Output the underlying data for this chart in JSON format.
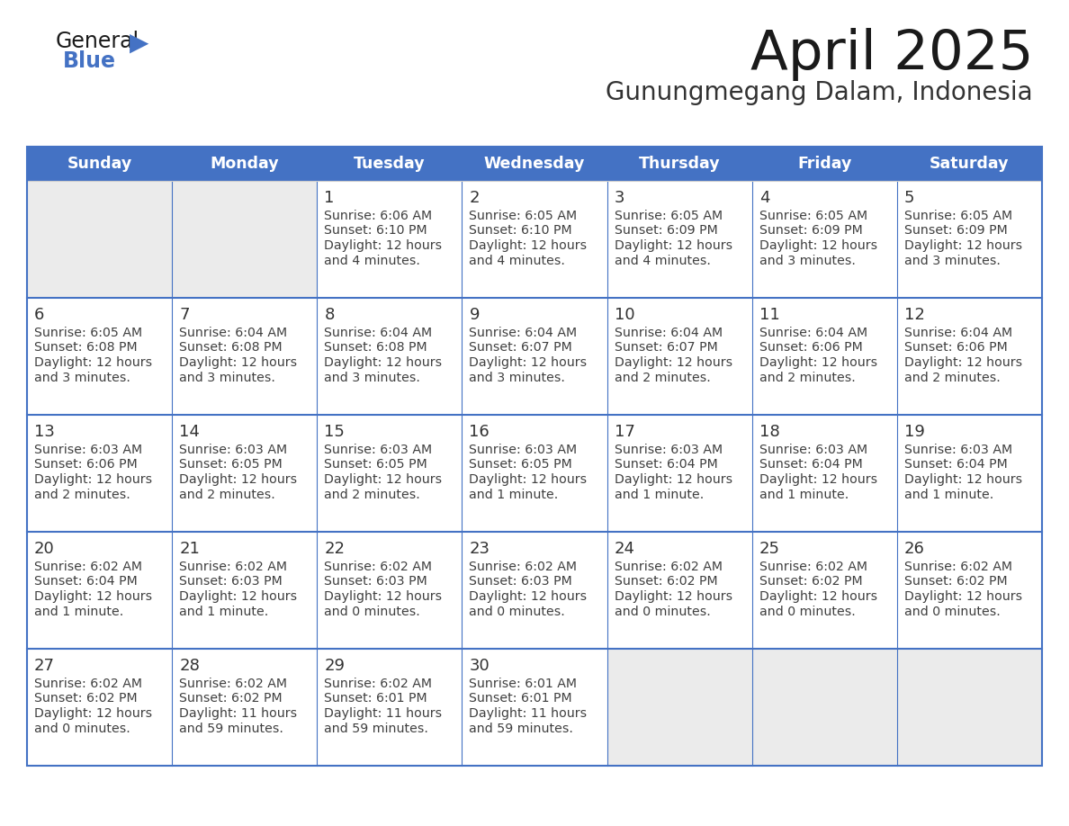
{
  "title": "April 2025",
  "subtitle": "Gunungmegang Dalam, Indonesia",
  "days_of_week": [
    "Sunday",
    "Monday",
    "Tuesday",
    "Wednesday",
    "Thursday",
    "Friday",
    "Saturday"
  ],
  "header_bg": "#4472C4",
  "header_text": "#FFFFFF",
  "empty_cell_bg": "#EBEBEB",
  "filled_cell_bg": "#FFFFFF",
  "grid_color": "#4472C4",
  "row_sep_color": "#4472C4",
  "text_color": "#404040",
  "day_num_color": "#333333",
  "title_color": "#1a1a1a",
  "subtitle_color": "#333333",
  "calendar": [
    [
      {
        "day": null
      },
      {
        "day": null
      },
      {
        "day": 1,
        "sunrise": "6:06 AM",
        "sunset": "6:10 PM",
        "daylight": "12 hours",
        "daylight2": "and 4 minutes."
      },
      {
        "day": 2,
        "sunrise": "6:05 AM",
        "sunset": "6:10 PM",
        "daylight": "12 hours",
        "daylight2": "and 4 minutes."
      },
      {
        "day": 3,
        "sunrise": "6:05 AM",
        "sunset": "6:09 PM",
        "daylight": "12 hours",
        "daylight2": "and 4 minutes."
      },
      {
        "day": 4,
        "sunrise": "6:05 AM",
        "sunset": "6:09 PM",
        "daylight": "12 hours",
        "daylight2": "and 3 minutes."
      },
      {
        "day": 5,
        "sunrise": "6:05 AM",
        "sunset": "6:09 PM",
        "daylight": "12 hours",
        "daylight2": "and 3 minutes."
      }
    ],
    [
      {
        "day": 6,
        "sunrise": "6:05 AM",
        "sunset": "6:08 PM",
        "daylight": "12 hours",
        "daylight2": "and 3 minutes."
      },
      {
        "day": 7,
        "sunrise": "6:04 AM",
        "sunset": "6:08 PM",
        "daylight": "12 hours",
        "daylight2": "and 3 minutes."
      },
      {
        "day": 8,
        "sunrise": "6:04 AM",
        "sunset": "6:08 PM",
        "daylight": "12 hours",
        "daylight2": "and 3 minutes."
      },
      {
        "day": 9,
        "sunrise": "6:04 AM",
        "sunset": "6:07 PM",
        "daylight": "12 hours",
        "daylight2": "and 3 minutes."
      },
      {
        "day": 10,
        "sunrise": "6:04 AM",
        "sunset": "6:07 PM",
        "daylight": "12 hours",
        "daylight2": "and 2 minutes."
      },
      {
        "day": 11,
        "sunrise": "6:04 AM",
        "sunset": "6:06 PM",
        "daylight": "12 hours",
        "daylight2": "and 2 minutes."
      },
      {
        "day": 12,
        "sunrise": "6:04 AM",
        "sunset": "6:06 PM",
        "daylight": "12 hours",
        "daylight2": "and 2 minutes."
      }
    ],
    [
      {
        "day": 13,
        "sunrise": "6:03 AM",
        "sunset": "6:06 PM",
        "daylight": "12 hours",
        "daylight2": "and 2 minutes."
      },
      {
        "day": 14,
        "sunrise": "6:03 AM",
        "sunset": "6:05 PM",
        "daylight": "12 hours",
        "daylight2": "and 2 minutes."
      },
      {
        "day": 15,
        "sunrise": "6:03 AM",
        "sunset": "6:05 PM",
        "daylight": "12 hours",
        "daylight2": "and 2 minutes."
      },
      {
        "day": 16,
        "sunrise": "6:03 AM",
        "sunset": "6:05 PM",
        "daylight": "12 hours",
        "daylight2": "and 1 minute."
      },
      {
        "day": 17,
        "sunrise": "6:03 AM",
        "sunset": "6:04 PM",
        "daylight": "12 hours",
        "daylight2": "and 1 minute."
      },
      {
        "day": 18,
        "sunrise": "6:03 AM",
        "sunset": "6:04 PM",
        "daylight": "12 hours",
        "daylight2": "and 1 minute."
      },
      {
        "day": 19,
        "sunrise": "6:03 AM",
        "sunset": "6:04 PM",
        "daylight": "12 hours",
        "daylight2": "and 1 minute."
      }
    ],
    [
      {
        "day": 20,
        "sunrise": "6:02 AM",
        "sunset": "6:04 PM",
        "daylight": "12 hours",
        "daylight2": "and 1 minute."
      },
      {
        "day": 21,
        "sunrise": "6:02 AM",
        "sunset": "6:03 PM",
        "daylight": "12 hours",
        "daylight2": "and 1 minute."
      },
      {
        "day": 22,
        "sunrise": "6:02 AM",
        "sunset": "6:03 PM",
        "daylight": "12 hours",
        "daylight2": "and 0 minutes."
      },
      {
        "day": 23,
        "sunrise": "6:02 AM",
        "sunset": "6:03 PM",
        "daylight": "12 hours",
        "daylight2": "and 0 minutes."
      },
      {
        "day": 24,
        "sunrise": "6:02 AM",
        "sunset": "6:02 PM",
        "daylight": "12 hours",
        "daylight2": "and 0 minutes."
      },
      {
        "day": 25,
        "sunrise": "6:02 AM",
        "sunset": "6:02 PM",
        "daylight": "12 hours",
        "daylight2": "and 0 minutes."
      },
      {
        "day": 26,
        "sunrise": "6:02 AM",
        "sunset": "6:02 PM",
        "daylight": "12 hours",
        "daylight2": "and 0 minutes."
      }
    ],
    [
      {
        "day": 27,
        "sunrise": "6:02 AM",
        "sunset": "6:02 PM",
        "daylight": "12 hours",
        "daylight2": "and 0 minutes."
      },
      {
        "day": 28,
        "sunrise": "6:02 AM",
        "sunset": "6:02 PM",
        "daylight": "11 hours",
        "daylight2": "and 59 minutes."
      },
      {
        "day": 29,
        "sunrise": "6:02 AM",
        "sunset": "6:01 PM",
        "daylight": "11 hours",
        "daylight2": "and 59 minutes."
      },
      {
        "day": 30,
        "sunrise": "6:01 AM",
        "sunset": "6:01 PM",
        "daylight": "11 hours",
        "daylight2": "and 59 minutes."
      },
      {
        "day": null
      },
      {
        "day": null
      },
      {
        "day": null
      }
    ]
  ]
}
